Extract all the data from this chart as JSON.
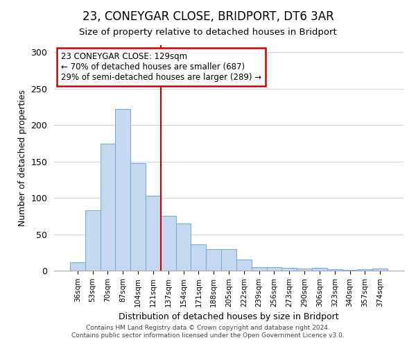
{
  "title": "23, CONEYGAR CLOSE, BRIDPORT, DT6 3AR",
  "subtitle": "Size of property relative to detached houses in Bridport",
  "xlabel": "Distribution of detached houses by size in Bridport",
  "ylabel": "Number of detached properties",
  "footer_line1": "Contains HM Land Registry data © Crown copyright and database right 2024.",
  "footer_line2": "Contains public sector information licensed under the Open Government Licence v3.0.",
  "categories": [
    "36sqm",
    "53sqm",
    "70sqm",
    "87sqm",
    "104sqm",
    "121sqm",
    "137sqm",
    "154sqm",
    "171sqm",
    "188sqm",
    "205sqm",
    "222sqm",
    "239sqm",
    "256sqm",
    "273sqm",
    "290sqm",
    "306sqm",
    "323sqm",
    "340sqm",
    "357sqm",
    "374sqm"
  ],
  "values": [
    11,
    83,
    175,
    222,
    148,
    103,
    75,
    65,
    36,
    30,
    30,
    15,
    5,
    5,
    4,
    3,
    4,
    2,
    1,
    2,
    3
  ],
  "bar_color": "#c6d8ef",
  "bar_edge_color": "#7aacd4",
  "grid_color": "#d0d8e8",
  "background_color": "#ffffff",
  "vline_x": 5.5,
  "vline_color": "#cc0000",
  "annotation_text": "23 CONEYGAR CLOSE: 129sqm\n← 70% of detached houses are smaller (687)\n29% of semi-detached houses are larger (289) →",
  "annotation_box_color": "white",
  "annotation_box_edge_color": "#cc0000",
  "ylim": [
    0,
    310
  ],
  "yticks": [
    0,
    50,
    100,
    150,
    200,
    250,
    300
  ],
  "title_fontsize": 12,
  "subtitle_fontsize": 10
}
